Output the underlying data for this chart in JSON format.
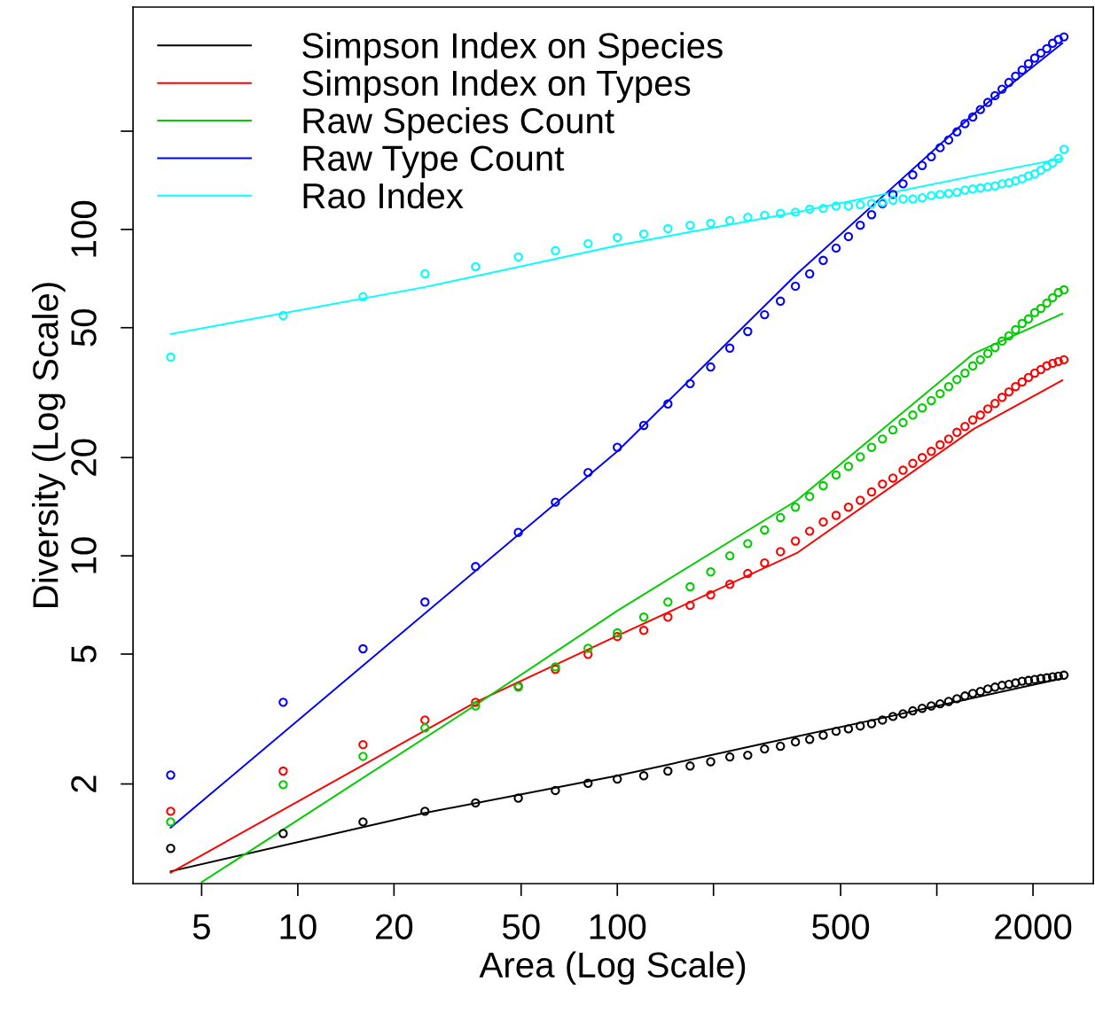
{
  "chart_data": {
    "type": "scatter",
    "xlabel": "Area (Log Scale)",
    "ylabel": "Diversity (Log Scale)",
    "log": "xy",
    "xlim": [
      3.05,
      3090
    ],
    "ylim": [
      0.99,
      480
    ],
    "xticks": [
      5,
      10,
      20,
      50,
      100,
      {
        "value": 200,
        "label": null
      },
      500,
      {
        "value": 1000,
        "label": null
      },
      2000
    ],
    "yticks": [
      2,
      5,
      10,
      20,
      50,
      100,
      {
        "value": 200,
        "label": null
      }
    ],
    "grid": false,
    "legend": "top left",
    "x": [
      4,
      9,
      16,
      25,
      36,
      49,
      64,
      81,
      100,
      121,
      144,
      169,
      196,
      225,
      256,
      289,
      324,
      361,
      400,
      441,
      484,
      529,
      576,
      625,
      676,
      729,
      784,
      841,
      900,
      961,
      1024,
      1089,
      1156,
      1225,
      1296,
      1369,
      1444,
      1521,
      1600,
      1681,
      1764,
      1849,
      1936,
      2025,
      2116,
      2209,
      2304,
      2401,
      2500
    ],
    "series": [
      {
        "type": "line",
        "name": "Simpson Index on Species",
        "color": "#000000",
        "x": [
          4,
          25,
          100,
          283,
          691,
          2470
        ],
        "values": [
          1.08,
          1.63,
          2.12,
          2.65,
          3.2,
          4.21
        ]
      },
      {
        "type": "line",
        "name": "Simpson Index on Types",
        "color": "#ff0000",
        "x": [
          4,
          36,
          100,
          365,
          1306,
          2470
        ],
        "values": [
          1.07,
          3.56,
          5.69,
          10.2,
          24.5,
          34.5
        ]
      },
      {
        "type": "line",
        "name": "Raw Species Count",
        "color": "#00cd00",
        "x": [
          5,
          36,
          100,
          365,
          1306,
          2470
        ],
        "values": [
          1.0,
          3.49,
          6.79,
          14.8,
          41.7,
          55.2
        ]
      },
      {
        "type": "line",
        "name": "Raw Type Count",
        "color": "#0000ff",
        "x": [
          4,
          100,
          365,
          1306,
          2470
        ],
        "values": [
          1.47,
          20.9,
          73.1,
          226,
          372
        ]
      },
      {
        "type": "line",
        "name": "Rao Index",
        "color": "#00ffff",
        "x": [
          4,
          25,
          100,
          365,
          1306,
          2470
        ],
        "values": [
          47.8,
          66.6,
          89.3,
          113,
          146,
          165
        ]
      },
      {
        "marker": "circle",
        "color": "#000000",
        "values": [
          1.27,
          1.41,
          1.53,
          1.65,
          1.75,
          1.81,
          1.91,
          2.01,
          2.07,
          2.12,
          2.19,
          2.27,
          2.34,
          2.42,
          2.45,
          2.56,
          2.61,
          2.69,
          2.74,
          2.82,
          2.9,
          2.95,
          3.01,
          3.06,
          3.14,
          3.22,
          3.28,
          3.35,
          3.41,
          3.47,
          3.52,
          3.58,
          3.65,
          3.72,
          3.79,
          3.84,
          3.91,
          3.96,
          4.01,
          4.04,
          4.08,
          4.13,
          4.15,
          4.18,
          4.21,
          4.23,
          4.26,
          4.28,
          4.31
        ]
      },
      {
        "marker": "circle",
        "color": "#ff0000",
        "values": [
          1.65,
          2.19,
          2.64,
          3.14,
          3.56,
          3.99,
          4.49,
          4.99,
          5.66,
          5.91,
          6.49,
          7.05,
          7.59,
          8.18,
          8.83,
          9.51,
          10.3,
          11.1,
          11.9,
          12.7,
          13.3,
          14.1,
          14.8,
          15.7,
          16.6,
          17.3,
          18.3,
          19.2,
          20.0,
          20.9,
          21.9,
          22.8,
          23.9,
          24.9,
          26.1,
          27.0,
          28.2,
          29.3,
          30.6,
          31.8,
          33.0,
          34.1,
          35.2,
          36.3,
          37.2,
          38.2,
          38.9,
          39.4,
          39.9
        ]
      },
      {
        "marker": "circle",
        "color": "#00cd00",
        "values": [
          1.53,
          1.99,
          2.43,
          2.97,
          3.47,
          3.96,
          4.57,
          5.21,
          5.81,
          6.49,
          7.22,
          8.04,
          8.93,
          10.0,
          10.9,
          12.0,
          13.1,
          14.1,
          15.2,
          16.4,
          17.7,
          18.8,
          20.1,
          21.5,
          22.8,
          24.3,
          25.6,
          27.0,
          28.4,
          29.9,
          31.4,
          33.0,
          34.7,
          36.3,
          38.2,
          39.9,
          41.7,
          43.5,
          45.5,
          47.2,
          49.3,
          51.5,
          53.2,
          55.6,
          57.3,
          59.5,
          61.8,
          64.1,
          65.3
        ]
      },
      {
        "marker": "circle",
        "color": "#0000ff",
        "values": [
          2.13,
          3.56,
          5.19,
          7.22,
          9.27,
          11.8,
          14.6,
          18.0,
          21.5,
          25.1,
          29.2,
          33.7,
          37.9,
          43.3,
          48.7,
          54.8,
          60.3,
          67.0,
          73.1,
          80.4,
          87.7,
          95.1,
          103,
          111,
          120,
          128,
          138,
          147,
          157,
          167,
          178,
          188,
          199,
          211,
          221,
          233,
          245,
          257,
          269,
          282,
          295,
          308,
          322,
          335,
          347,
          358,
          372,
          382,
          389
        ]
      },
      {
        "marker": "circle",
        "color": "#00ffff",
        "values": [
          40.6,
          54.5,
          62.2,
          73.1,
          76.9,
          82.4,
          86.1,
          90.5,
          94.5,
          96.9,
          100.6,
          103,
          104.5,
          106.5,
          109,
          110.5,
          112,
          113,
          115.5,
          116,
          118,
          118,
          119,
          120,
          121,
          123,
          124,
          124,
          125,
          127,
          128,
          129,
          130,
          132,
          133,
          134,
          135,
          136,
          138,
          139,
          141,
          143,
          146,
          148,
          152,
          156,
          160,
          165,
          176
        ]
      }
    ]
  }
}
